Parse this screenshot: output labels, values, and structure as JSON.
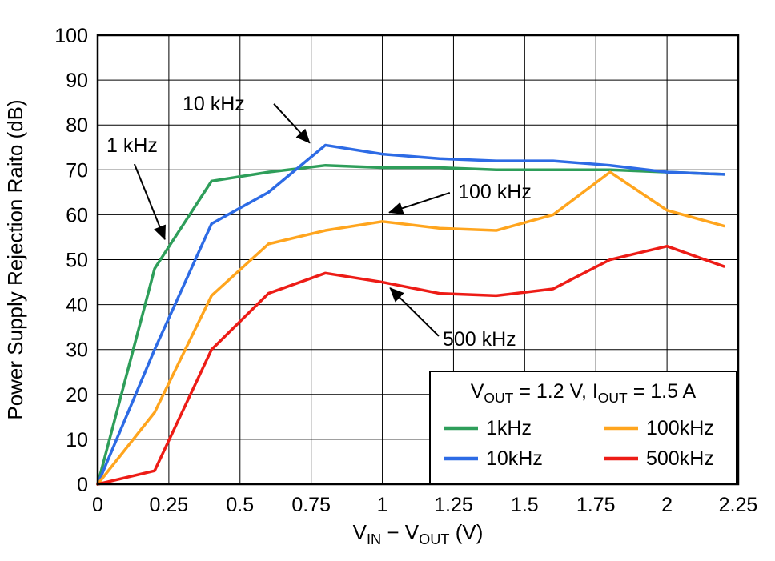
{
  "figure": {
    "background": "#ffffff",
    "axis_color": "#000000",
    "grid_color": "#000000",
    "text_color": "#000000"
  },
  "chart_data": {
    "type": "line",
    "title": "",
    "ylabel": "Power Supply Rejection Raito (dB)",
    "xlabel_parts": [
      [
        "t",
        "V"
      ],
      [
        "sub",
        "IN"
      ],
      [
        "t",
        " − V"
      ],
      [
        "sub",
        "OUT"
      ],
      [
        "t",
        " (V)"
      ]
    ],
    "xlim": [
      0,
      2.25
    ],
    "ylim": [
      0,
      100
    ],
    "grid": true,
    "xticks": [
      0,
      0.25,
      0.5,
      0.75,
      1,
      1.25,
      1.5,
      1.75,
      2,
      2.25
    ],
    "xtick_labels": [
      "0",
      "0.25",
      "0.5",
      "0.75",
      "1",
      "1.25",
      "1.5",
      "1.75",
      "2",
      "2.25"
    ],
    "yticks": [
      0,
      10,
      20,
      30,
      40,
      50,
      60,
      70,
      80,
      90,
      100
    ],
    "ytick_labels": [
      "0",
      "10",
      "20",
      "30",
      "40",
      "50",
      "60",
      "70",
      "80",
      "90",
      "100"
    ],
    "x": [
      0,
      0.2,
      0.4,
      0.6,
      0.8,
      1.0,
      1.2,
      1.4,
      1.6,
      1.8,
      2.0,
      2.2
    ],
    "series": [
      {
        "name": "1kHz",
        "color": "#2E9E5A",
        "values": [
          0,
          48,
          67.5,
          69.5,
          71,
          70.5,
          70.5,
          70,
          70,
          70,
          69.5,
          69
        ]
      },
      {
        "name": "10kHz",
        "color": "#2D6BE5",
        "values": [
          0,
          30,
          58,
          65,
          75.5,
          73.5,
          72.5,
          72,
          72,
          71,
          69.5,
          69
        ]
      },
      {
        "name": "100kHz",
        "color": "#FFA51E",
        "values": [
          0,
          16,
          42,
          53.5,
          56.5,
          58.5,
          57,
          56.5,
          60,
          69.5,
          61,
          57.5
        ]
      },
      {
        "name": "500kHz",
        "color": "#ED1C16",
        "values": [
          0,
          3,
          30,
          42.5,
          47,
          45,
          42.5,
          42,
          43.5,
          50,
          53,
          48.5
        ]
      }
    ],
    "legend": {
      "position": "lower right",
      "title_parts": [
        [
          "t",
          "V"
        ],
        [
          "sub",
          "OUT"
        ],
        [
          "t",
          " = 1.2 V, I"
        ],
        [
          "sub",
          "OUT"
        ],
        [
          "t",
          " = 1.5 A"
        ]
      ],
      "entries": [
        {
          "label": "1kHz",
          "series": 0
        },
        {
          "label": "100kHz",
          "series": 2
        },
        {
          "label": "10kHz",
          "series": 1
        },
        {
          "label": "500kHz",
          "series": 3
        }
      ]
    },
    "annotations": [
      {
        "label": "1 kHz",
        "text": [
          0.031,
          74.0
        ],
        "arrow_from": [
          0.129,
          71.3
        ],
        "arrow_to": [
          0.236,
          54.5
        ]
      },
      {
        "label": "10 kHz",
        "text": [
          0.298,
          83.2
        ],
        "arrow_from": [
          0.619,
          84.7
        ],
        "arrow_to": [
          0.745,
          76.0
        ]
      },
      {
        "label": "100 kHz",
        "text": [
          1.266,
          63.6
        ],
        "arrow_from": [
          1.237,
          64.9
        ],
        "arrow_to": [
          1.024,
          60.5
        ]
      },
      {
        "label": "500 kHz",
        "text": [
          1.212,
          30.8
        ],
        "arrow_from": [
          1.198,
          33.0
        ],
        "arrow_to": [
          1.027,
          43.7
        ]
      }
    ]
  }
}
